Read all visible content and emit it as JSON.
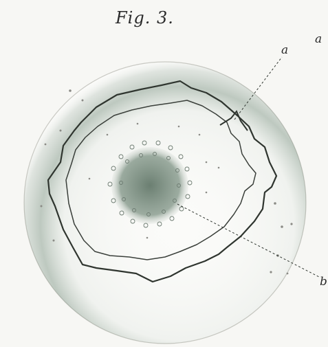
{
  "figure": {
    "title": "Fig. 3."
  },
  "labels": {
    "a": "a",
    "a_corner": "a",
    "b": "b"
  },
  "colors": {
    "paper": "#f7f7f4",
    "outline": "#2f352f",
    "shading": "#4b6b55",
    "dots": "#777777"
  }
}
